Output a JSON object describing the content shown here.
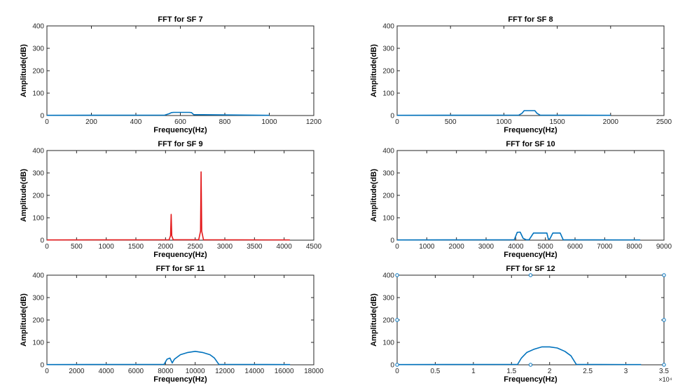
{
  "figure": {
    "colors": {
      "blue": "#0072BD",
      "red": "#E31A1C",
      "axis": "#262626"
    }
  },
  "chart_data": [
    {
      "type": "line",
      "title": "FFT for SF 7",
      "xlabel": "Frequency(Hz)",
      "ylabel": "Amplitude(dB)",
      "xlim": [
        0,
        1200
      ],
      "ylim": [
        0,
        400
      ],
      "xticks": [
        0,
        200,
        400,
        600,
        800,
        1000,
        1200
      ],
      "yticks": [
        0,
        100,
        200,
        300,
        400
      ],
      "color": "#0072BD",
      "series": [
        {
          "x": [
            0,
            530,
            550,
            560,
            570,
            640,
            650,
            660,
            1000
          ],
          "y": [
            1,
            2,
            8,
            13,
            14,
            14,
            13,
            4,
            1
          ]
        }
      ]
    },
    {
      "type": "line",
      "title": "FFT for SF 8",
      "xlabel": "Frequency(Hz)",
      "ylabel": "Amplitude(dB)",
      "xlim": [
        0,
        2500
      ],
      "ylim": [
        0,
        400
      ],
      "xticks": [
        0,
        500,
        1000,
        1500,
        2000,
        2500
      ],
      "yticks": [
        0,
        100,
        200,
        300,
        400
      ],
      "color": "#0072BD",
      "series": [
        {
          "x": [
            0,
            1140,
            1170,
            1190,
            1290,
            1310,
            1340,
            2000
          ],
          "y": [
            1,
            2,
            10,
            22,
            22,
            10,
            2,
            1
          ]
        }
      ]
    },
    {
      "type": "line",
      "title": "FFT for SF 9",
      "xlabel": "Frequency(Hz)",
      "ylabel": "Amplitude(dB)",
      "xlim": [
        0,
        4500
      ],
      "ylim": [
        0,
        400
      ],
      "xticks": [
        0,
        500,
        1000,
        1500,
        2000,
        2500,
        3000,
        3500,
        4000,
        4500
      ],
      "yticks": [
        0,
        100,
        200,
        300,
        400
      ],
      "color": "#E31A1C",
      "series": [
        {
          "x": [
            0,
            2060,
            2085,
            2095,
            2105,
            2130,
            2560,
            2590,
            2600,
            2610,
            2640,
            4096
          ],
          "y": [
            1,
            2,
            20,
            115,
            20,
            2,
            2,
            40,
            305,
            40,
            2,
            1
          ]
        }
      ]
    },
    {
      "type": "line",
      "title": "FFT for SF 10",
      "xlabel": "Frequency(Hz)",
      "ylabel": "Amplitude(dB)",
      "xlim": [
        0,
        9000
      ],
      "ylim": [
        0,
        400
      ],
      "xticks": [
        0,
        1000,
        2000,
        3000,
        4000,
        5000,
        6000,
        7000,
        8000,
        9000
      ],
      "yticks": [
        0,
        100,
        200,
        300,
        400
      ],
      "color": "#0072BD",
      "series": [
        {
          "x": [
            0,
            3950,
            4050,
            4150,
            4250,
            4350,
            4450,
            4600,
            5050,
            5100,
            5150,
            5250,
            5500,
            5600,
            8200
          ],
          "y": [
            1,
            2,
            35,
            36,
            8,
            2,
            2,
            32,
            32,
            5,
            5,
            32,
            32,
            2,
            1
          ]
        }
      ]
    },
    {
      "type": "line",
      "title": "FFT for SF 11",
      "xlabel": "Frequency(Hz)",
      "ylabel": "Amplitude(dB)",
      "xlim": [
        0,
        18000
      ],
      "ylim": [
        0,
        400
      ],
      "xticks": [
        0,
        2000,
        4000,
        6000,
        8000,
        10000,
        12000,
        14000,
        16000,
        18000
      ],
      "yticks": [
        0,
        100,
        200,
        300,
        400
      ],
      "color": "#0072BD",
      "series": [
        {
          "x": [
            0,
            7900,
            8100,
            8300,
            8450,
            8600,
            9000,
            9500,
            10000,
            10500,
            11000,
            11300,
            11600,
            16400
          ],
          "y": [
            1,
            2,
            25,
            30,
            8,
            25,
            45,
            55,
            60,
            55,
            45,
            30,
            2,
            1
          ]
        }
      ]
    },
    {
      "type": "line",
      "title": "FFT for SF 12",
      "xlabel": "Frequency(Hz)",
      "ylabel": "Amplitude(dB)",
      "xlim": [
        0,
        35000
      ],
      "ylim": [
        0,
        400
      ],
      "xticks": [
        0,
        5000,
        10000,
        15000,
        20000,
        25000,
        30000,
        35000
      ],
      "xtick_labels": [
        "0",
        "0.5",
        "1",
        "1.5",
        "2",
        "2.5",
        "3",
        "3.5"
      ],
      "x_exponent": "×10⁴",
      "yticks": [
        0,
        100,
        200,
        300,
        400
      ],
      "color": "#0072BD",
      "series": [
        {
          "x": [
            0,
            15800,
            16300,
            17000,
            18000,
            19000,
            20000,
            21000,
            22000,
            22800,
            23500,
            32000
          ],
          "y": [
            1,
            2,
            30,
            55,
            70,
            80,
            80,
            75,
            60,
            40,
            2,
            1
          ]
        }
      ],
      "markers": [
        {
          "x": 0,
          "y": 400
        },
        {
          "x": 0,
          "y": 200
        },
        {
          "x": 0,
          "y": 0
        },
        {
          "x": 17500,
          "y": 400
        },
        {
          "x": 17500,
          "y": 0
        },
        {
          "x": 35000,
          "y": 400
        },
        {
          "x": 35000,
          "y": 200
        },
        {
          "x": 35000,
          "y": 0
        }
      ]
    }
  ]
}
